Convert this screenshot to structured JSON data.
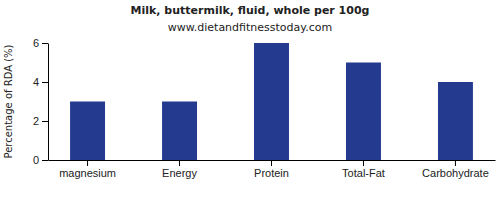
{
  "chart_data": {
    "type": "bar",
    "title": "Milk, buttermilk, fluid, whole per 100g",
    "subtitle": "www.dietandfitnesstoday.com",
    "y_label": "Percentage of RDA (%)",
    "categories": [
      "magnesium",
      "Energy",
      "Protein",
      "Total-Fat",
      "Carbohydrate"
    ],
    "values": [
      3,
      3,
      6,
      5,
      4
    ],
    "color": "#233a8e",
    "ylim": [
      0,
      6
    ],
    "yticks": [
      0,
      2,
      4,
      6
    ],
    "grid": false
  }
}
